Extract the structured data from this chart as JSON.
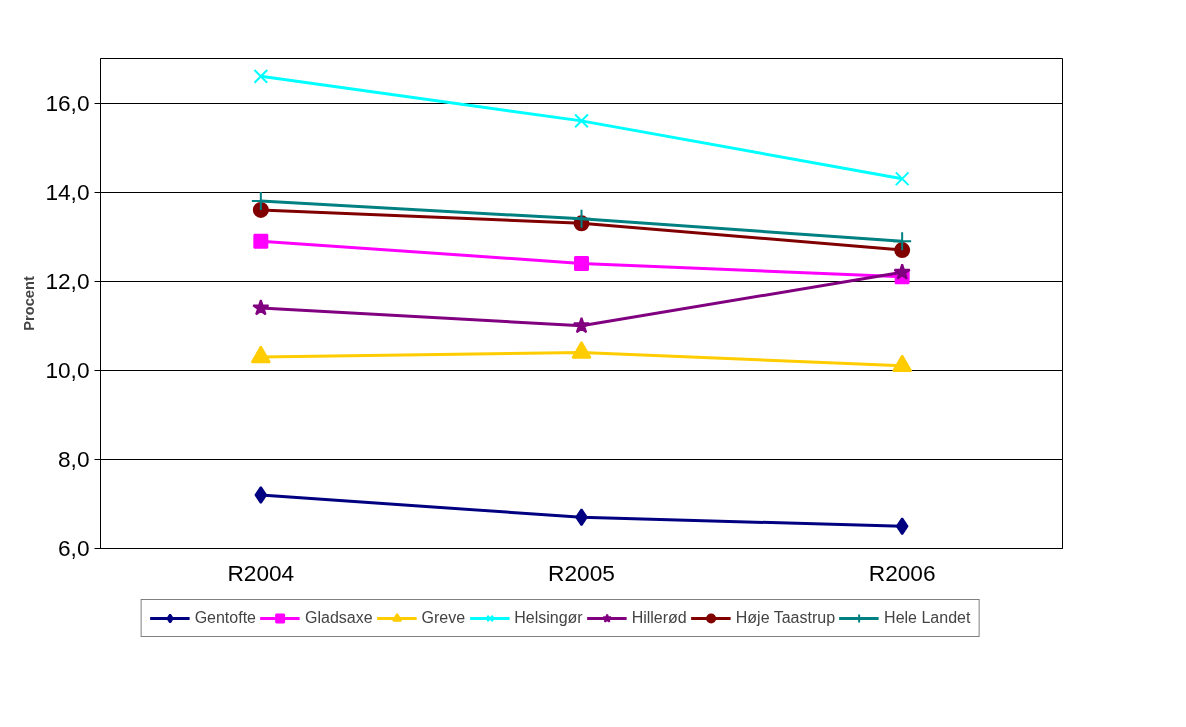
{
  "chart_data": {
    "type": "line",
    "ylabel": "Procent",
    "categories": [
      "R2004",
      "R2005",
      "R2006"
    ],
    "series": [
      {
        "name": "Gentofte",
        "color": "#000080",
        "marker": "diamond",
        "values": [
          7.2,
          6.7,
          6.5
        ]
      },
      {
        "name": "Gladsaxe",
        "color": "#ff00ff",
        "marker": "square",
        "values": [
          12.9,
          12.4,
          12.1
        ]
      },
      {
        "name": "Greve",
        "color": "#ffcc00",
        "marker": "triangle",
        "values": [
          10.3,
          10.4,
          10.1
        ]
      },
      {
        "name": "Helsingør",
        "color": "#00ffff",
        "marker": "x",
        "values": [
          16.6,
          15.6,
          14.3
        ]
      },
      {
        "name": "Hillerød",
        "color": "#800080",
        "marker": "star",
        "values": [
          11.4,
          11.0,
          12.2
        ]
      },
      {
        "name": "Høje Taastrup",
        "color": "#800000",
        "marker": "circle",
        "values": [
          13.6,
          13.3,
          12.7
        ]
      },
      {
        "name": "Hele Landet",
        "color": "#008080",
        "marker": "cross",
        "values": [
          13.8,
          13.4,
          12.9
        ]
      }
    ],
    "ylim": [
      6,
      17
    ],
    "yticks": [
      {
        "value": 6,
        "label": "6,0"
      },
      {
        "value": 8,
        "label": "8,0"
      },
      {
        "value": 10,
        "label": "10,0"
      },
      {
        "value": 12,
        "label": "12,0"
      },
      {
        "value": 14,
        "label": "14,0"
      },
      {
        "value": 16,
        "label": "16,0"
      }
    ],
    "grid": "y",
    "legend": "bottom"
  }
}
